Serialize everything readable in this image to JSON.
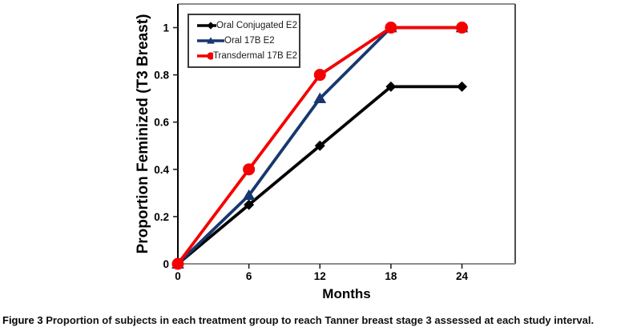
{
  "figure": {
    "caption_label": "Figure 3",
    "caption_text": "Proportion of subjects in each treatment group to reach Tanner breast stage 3 assessed at each study interval."
  },
  "chart_data": {
    "type": "line",
    "title": "",
    "xlabel": "Months",
    "ylabel": "Proportion Feminized (T3 Breast)",
    "x": [
      0,
      6,
      12,
      18,
      24
    ],
    "series": [
      {
        "name": "Oral Conjugated E2",
        "color": "#000000",
        "marker": "diamond",
        "values": [
          0,
          0.25,
          0.5,
          0.75,
          0.75
        ]
      },
      {
        "name": "Oral 17B E2",
        "color": "#17376e",
        "marker": "triangle",
        "values": [
          0,
          0.29,
          0.7,
          1,
          1
        ]
      },
      {
        "name": "Transdermal 17B E2",
        "color": "#f40000",
        "marker": "circle",
        "values": [
          0,
          0.4,
          0.8,
          1,
          1
        ]
      }
    ],
    "x_tick_values": [
      0,
      6,
      12,
      18,
      24
    ],
    "x_tick_labels": [
      "0",
      "6",
      "12",
      "18",
      "24"
    ],
    "y_tick_values": [
      0,
      0.2,
      0.4,
      0.6,
      0.8,
      1
    ],
    "y_tick_labels": [
      "0",
      "0.2",
      "0.4",
      "0.6",
      "0.8",
      "1"
    ],
    "xlim": [
      0,
      28.5
    ],
    "ylim": [
      0,
      1.1
    ],
    "grid": false,
    "legend_position": "top-left",
    "colors": {
      "axis_left": "#000000",
      "axis_bottom": "#8c8c8c",
      "box_top": "#8c8c8c",
      "box_right": "#4d4d4d",
      "tick": "#222222",
      "background": "#ffffff"
    }
  }
}
